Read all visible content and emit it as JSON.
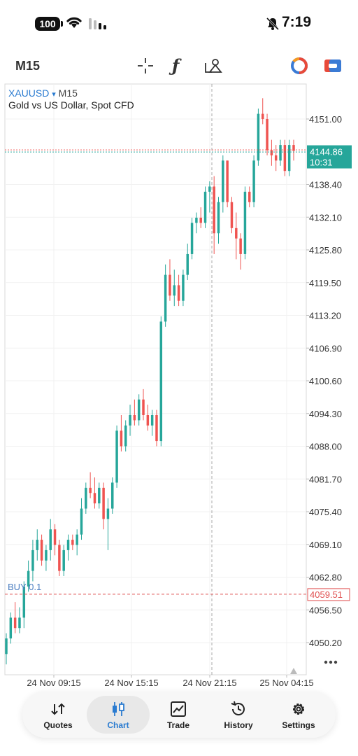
{
  "status_bar": {
    "battery": "100",
    "time": "7:19",
    "icons": [
      "wifi-icon",
      "signal-icon",
      "bell-muted-icon"
    ]
  },
  "toolbar": {
    "timeframe": "M15",
    "tools": [
      "crosshair-icon",
      "indicators-icon",
      "objects-icon",
      "color-circle-icon",
      "account-icon"
    ],
    "indicator_glyph": "ƒ"
  },
  "chart": {
    "symbol": "XAUUSD",
    "symbol_arrow": "▾",
    "timeframe": "M15",
    "description": "Gold vs US Dollar, Spot CFD",
    "current_price": "4144.86",
    "countdown": "10:31",
    "position_label": "BUY 0.1",
    "position_price": "4059.51",
    "colors": {
      "up": "#26a69a",
      "down": "#ef5350",
      "position": "#e05050"
    }
  },
  "chart_data": {
    "type": "candlestick",
    "y_ticks": [
      "4151.00",
      "4138.40",
      "4132.10",
      "4125.80",
      "4119.50",
      "4113.20",
      "4106.90",
      "4100.60",
      "4094.30",
      "4088.00",
      "4081.70",
      "4075.40",
      "4069.10",
      "4062.80",
      "4056.50",
      "4050.20"
    ],
    "x_ticks": [
      "24 Nov 09:15",
      "24 Nov 15:15",
      "24 Nov 21:15",
      "25 Nov 04:15"
    ],
    "ylim": [
      4045,
      4156
    ],
    "candles": [
      {
        "o": 4048,
        "h": 4052,
        "l": 4046,
        "c": 4051
      },
      {
        "o": 4051,
        "h": 4056,
        "l": 4050,
        "c": 4055
      },
      {
        "o": 4055,
        "h": 4058,
        "l": 4052,
        "c": 4053
      },
      {
        "o": 4053,
        "h": 4057,
        "l": 4052,
        "c": 4055
      },
      {
        "o": 4055,
        "h": 4062,
        "l": 4053,
        "c": 4061
      },
      {
        "o": 4061,
        "h": 4066,
        "l": 4060,
        "c": 4064
      },
      {
        "o": 4064,
        "h": 4070,
        "l": 4062,
        "c": 4068
      },
      {
        "o": 4068,
        "h": 4072,
        "l": 4066,
        "c": 4070
      },
      {
        "o": 4070,
        "h": 4071,
        "l": 4065,
        "c": 4066
      },
      {
        "o": 4066,
        "h": 4069,
        "l": 4064,
        "c": 4068
      },
      {
        "o": 4068,
        "h": 4074,
        "l": 4066,
        "c": 4072
      },
      {
        "o": 4072,
        "h": 4073,
        "l": 4067,
        "c": 4069
      },
      {
        "o": 4069,
        "h": 4070,
        "l": 4063,
        "c": 4064
      },
      {
        "o": 4064,
        "h": 4069,
        "l": 4063,
        "c": 4068
      },
      {
        "o": 4068,
        "h": 4071,
        "l": 4066,
        "c": 4070
      },
      {
        "o": 4070,
        "h": 4071,
        "l": 4068,
        "c": 4069
      },
      {
        "o": 4069,
        "h": 4072,
        "l": 4067,
        "c": 4071
      },
      {
        "o": 4071,
        "h": 4078,
        "l": 4070,
        "c": 4076
      },
      {
        "o": 4076,
        "h": 4081,
        "l": 4075,
        "c": 4080
      },
      {
        "o": 4080,
        "h": 4083,
        "l": 4078,
        "c": 4079
      },
      {
        "o": 4079,
        "h": 4082,
        "l": 4076,
        "c": 4077
      },
      {
        "o": 4077,
        "h": 4081,
        "l": 4076,
        "c": 4080
      },
      {
        "o": 4080,
        "h": 4081,
        "l": 4072,
        "c": 4074
      },
      {
        "o": 4074,
        "h": 4078,
        "l": 4068,
        "c": 4076
      },
      {
        "o": 4076,
        "h": 4082,
        "l": 4075,
        "c": 4081
      },
      {
        "o": 4081,
        "h": 4092,
        "l": 4080,
        "c": 4091
      },
      {
        "o": 4091,
        "h": 4094,
        "l": 4087,
        "c": 4088
      },
      {
        "o": 4088,
        "h": 4093,
        "l": 4087,
        "c": 4092
      },
      {
        "o": 4092,
        "h": 4096,
        "l": 4090,
        "c": 4094
      },
      {
        "o": 4094,
        "h": 4097,
        "l": 4092,
        "c": 4093
      },
      {
        "o": 4093,
        "h": 4098,
        "l": 4092,
        "c": 4097
      },
      {
        "o": 4097,
        "h": 4099,
        "l": 4093,
        "c": 4094
      },
      {
        "o": 4094,
        "h": 4096,
        "l": 4091,
        "c": 4092
      },
      {
        "o": 4092,
        "h": 4095,
        "l": 4090,
        "c": 4094
      },
      {
        "o": 4094,
        "h": 4095,
        "l": 4088,
        "c": 4089
      },
      {
        "o": 4089,
        "h": 4113,
        "l": 4088,
        "c": 4112
      },
      {
        "o": 4112,
        "h": 4123,
        "l": 4111,
        "c": 4121
      },
      {
        "o": 4121,
        "h": 4124,
        "l": 4116,
        "c": 4117
      },
      {
        "o": 4117,
        "h": 4122,
        "l": 4115,
        "c": 4119
      },
      {
        "o": 4119,
        "h": 4121,
        "l": 4115,
        "c": 4116
      },
      {
        "o": 4116,
        "h": 4122,
        "l": 4115,
        "c": 4121
      },
      {
        "o": 4121,
        "h": 4127,
        "l": 4120,
        "c": 4125
      },
      {
        "o": 4125,
        "h": 4132,
        "l": 4124,
        "c": 4131
      },
      {
        "o": 4131,
        "h": 4133,
        "l": 4129,
        "c": 4132
      },
      {
        "o": 4132,
        "h": 4134,
        "l": 4130,
        "c": 4131
      },
      {
        "o": 4131,
        "h": 4138,
        "l": 4130,
        "c": 4137
      },
      {
        "o": 4137,
        "h": 4139,
        "l": 4133,
        "c": 4138
      },
      {
        "o": 4138,
        "h": 4140,
        "l": 4125,
        "c": 4129
      },
      {
        "o": 4129,
        "h": 4136,
        "l": 4127,
        "c": 4135
      },
      {
        "o": 4135,
        "h": 4144,
        "l": 4133,
        "c": 4143
      },
      {
        "o": 4143,
        "h": 4143,
        "l": 4134,
        "c": 4135
      },
      {
        "o": 4135,
        "h": 4136,
        "l": 4129,
        "c": 4130
      },
      {
        "o": 4130,
        "h": 4133,
        "l": 4124,
        "c": 4128
      },
      {
        "o": 4128,
        "h": 4129,
        "l": 4122,
        "c": 4125
      },
      {
        "o": 4125,
        "h": 4138,
        "l": 4124,
        "c": 4137
      },
      {
        "o": 4137,
        "h": 4138,
        "l": 4134,
        "c": 4135
      },
      {
        "o": 4135,
        "h": 4144,
        "l": 4134,
        "c": 4143
      },
      {
        "o": 4143,
        "h": 4153,
        "l": 4142,
        "c": 4152
      },
      {
        "o": 4152,
        "h": 4155,
        "l": 4150,
        "c": 4151
      },
      {
        "o": 4151,
        "h": 4152,
        "l": 4144,
        "c": 4145
      },
      {
        "o": 4145,
        "h": 4147,
        "l": 4142,
        "c": 4144
      },
      {
        "o": 4144,
        "h": 4146,
        "l": 4141,
        "c": 4143
      },
      {
        "o": 4143,
        "h": 4147,
        "l": 4142,
        "c": 4146
      },
      {
        "o": 4146,
        "h": 4147,
        "l": 4140,
        "c": 4141
      },
      {
        "o": 4141,
        "h": 4147,
        "l": 4140,
        "c": 4146
      },
      {
        "o": 4146,
        "h": 4147,
        "l": 4143,
        "c": 4144.86
      }
    ]
  },
  "nav": {
    "items": [
      {
        "label": "Quotes",
        "icon": "quotes-icon"
      },
      {
        "label": "Chart",
        "icon": "chart-icon"
      },
      {
        "label": "Trade",
        "icon": "trade-icon"
      },
      {
        "label": "History",
        "icon": "history-icon"
      },
      {
        "label": "Settings",
        "icon": "settings-icon"
      }
    ],
    "active": "Chart"
  }
}
